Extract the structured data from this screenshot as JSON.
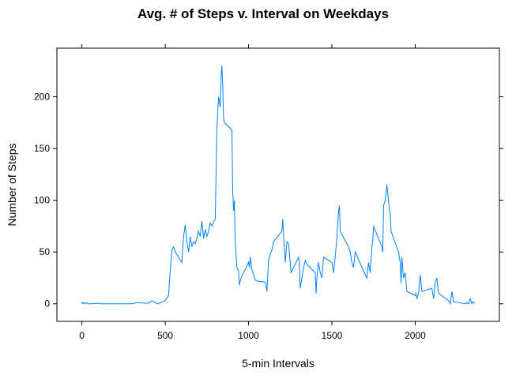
{
  "chart_data": {
    "type": "line",
    "title": "Avg. # of Steps v. Interval on Weekdays",
    "xlabel": "5-min Intervals",
    "ylabel": "Number of Steps",
    "xlim": [
      -150,
      2505
    ],
    "ylim": [
      -17,
      247
    ],
    "xticks": [
      0,
      500,
      1000,
      1500,
      2000
    ],
    "yticks": [
      0,
      50,
      100,
      150,
      200
    ],
    "xtick_labels": [
      "0",
      "500",
      "1000",
      "1500",
      "2000"
    ],
    "ytick_labels": [
      "0",
      "50",
      "100",
      "150",
      "200"
    ],
    "grid": false,
    "color": "#0080ff",
    "series": [
      {
        "x": [
          0,
          5,
          10,
          20,
          30,
          40,
          50,
          100,
          110,
          130,
          200,
          300,
          330,
          400,
          420,
          440,
          455,
          500,
          520,
          530,
          540,
          550,
          560,
          600,
          610,
          620,
          630,
          640,
          650,
          660,
          670,
          680,
          700,
          710,
          720,
          730,
          740,
          750,
          760,
          770,
          780,
          790,
          800,
          810,
          820,
          830,
          835,
          840,
          845,
          850,
          855,
          900,
          905,
          910,
          915,
          920,
          930,
          940,
          945,
          950,
          955,
          1000,
          1005,
          1010,
          1020,
          1030,
          1040,
          1050,
          1100,
          1110,
          1120,
          1130,
          1140,
          1150,
          1200,
          1205,
          1210,
          1220,
          1230,
          1240,
          1250,
          1255,
          1300,
          1305,
          1310,
          1320,
          1330,
          1340,
          1350,
          1400,
          1405,
          1410,
          1420,
          1430,
          1440,
          1450,
          1500,
          1510,
          1520,
          1530,
          1540,
          1545,
          1550,
          1600,
          1610,
          1620,
          1630,
          1640,
          1700,
          1710,
          1720,
          1730,
          1740,
          1745,
          1750,
          1800,
          1805,
          1810,
          1820,
          1830,
          1840,
          1845,
          1850,
          1855,
          1900,
          1905,
          1910,
          1915,
          1920,
          1930,
          1940,
          1950,
          2000,
          2005,
          2010,
          2020,
          2030,
          2040,
          2100,
          2110,
          2120,
          2130,
          2140,
          2200,
          2210,
          2220,
          2230,
          2300,
          2310,
          2320,
          2330,
          2340,
          2350,
          2355
        ],
        "y": [
          2,
          0,
          1,
          0,
          1,
          0,
          0,
          0.5,
          0,
          0,
          0,
          0,
          1,
          0.5,
          3,
          1,
          0,
          3,
          8,
          32,
          52,
          55,
          50,
          40,
          65,
          76,
          60,
          50,
          65,
          55,
          60,
          58,
          70,
          65,
          80,
          63,
          72,
          65,
          70,
          78,
          75,
          79,
          82,
          170,
          200,
          190,
          220,
          230,
          210,
          180,
          175,
          168,
          110,
          90,
          100,
          60,
          35,
          32,
          18,
          22,
          25,
          40,
          35,
          45,
          33,
          28,
          23,
          22,
          21,
          12,
          42,
          48,
          52,
          60,
          70,
          82,
          65,
          40,
          60,
          58,
          40,
          30,
          45,
          40,
          15,
          25,
          35,
          42,
          38,
          30,
          10,
          25,
          40,
          30,
          25,
          45,
          40,
          30,
          45,
          65,
          90,
          95,
          70,
          55,
          50,
          40,
          35,
          50,
          28,
          25,
          40,
          30,
          55,
          60,
          75,
          55,
          50,
          95,
          100,
          115,
          100,
          90,
          88,
          70,
          50,
          45,
          40,
          20,
          45,
          25,
          30,
          12,
          8,
          10,
          5,
          10,
          28,
          12,
          15,
          5,
          20,
          25,
          10,
          3,
          0,
          12,
          2,
          0,
          1,
          0,
          5,
          0,
          2,
          0
        ]
      }
    ]
  }
}
